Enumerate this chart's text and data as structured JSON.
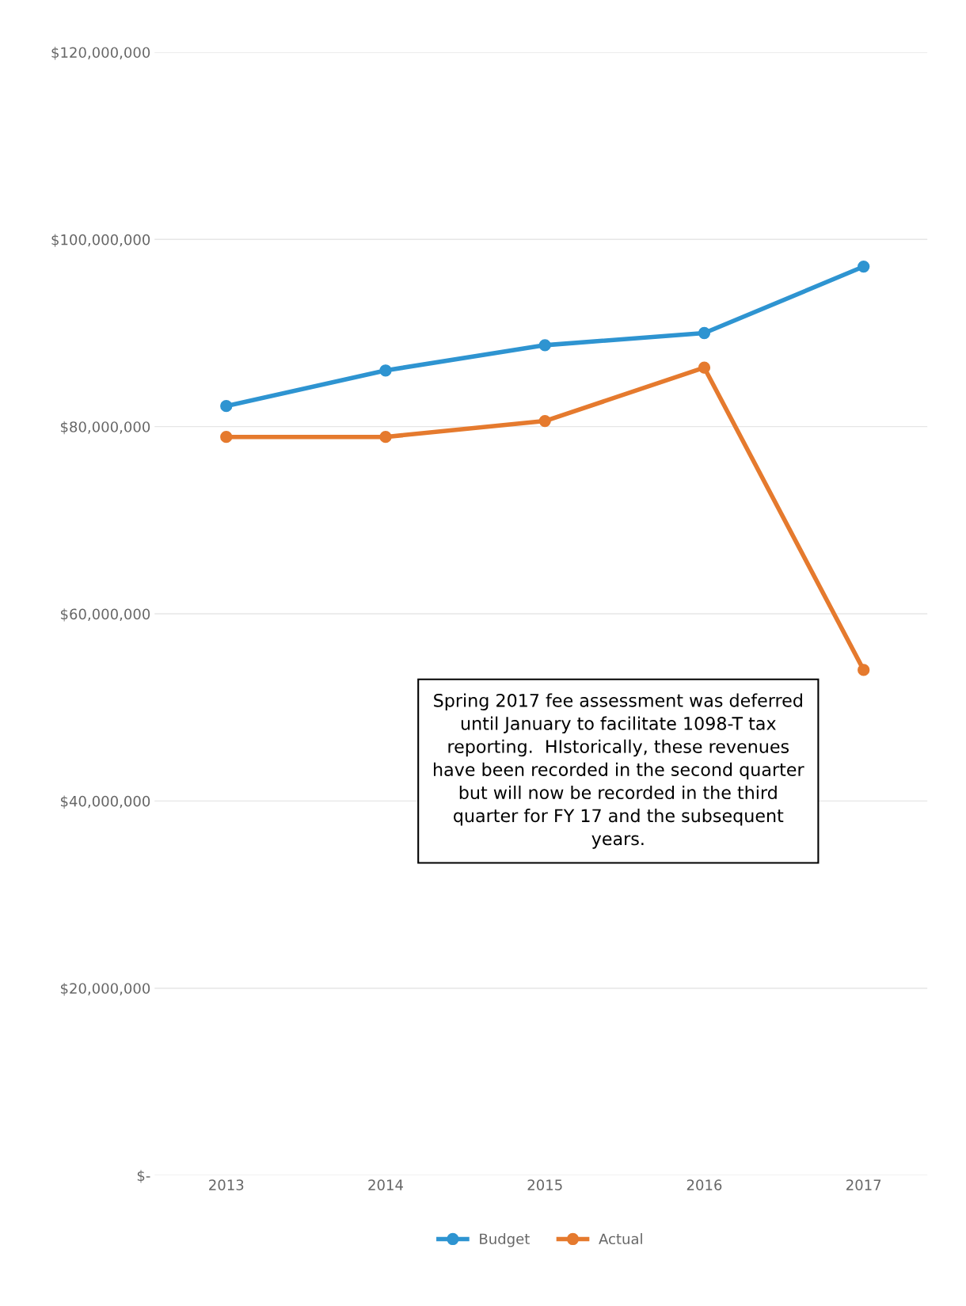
{
  "chart_data": {
    "type": "line",
    "categories": [
      "2013",
      "2014",
      "2015",
      "2016",
      "2017"
    ],
    "series": [
      {
        "name": "Budget",
        "color": "#2e94d1",
        "values": [
          82200000,
          86000000,
          88700000,
          90000000,
          97100000
        ]
      },
      {
        "name": "Actual",
        "color": "#e57a2e",
        "values": [
          78900000,
          78900000,
          80600000,
          86300000,
          54000000
        ]
      }
    ],
    "ylim": [
      0,
      120000000
    ],
    "yticks": [
      {
        "value": 0,
        "label": "$-"
      },
      {
        "value": 20000000,
        "label": "$20,000,000"
      },
      {
        "value": 40000000,
        "label": "$40,000,000"
      },
      {
        "value": 60000000,
        "label": "$60,000,000"
      },
      {
        "value": 80000000,
        "label": "$80,000,000"
      },
      {
        "value": 100000000,
        "label": "$100,000,000"
      },
      {
        "value": 120000000,
        "label": "$120,000,000"
      }
    ],
    "grid": "y",
    "legend": "bottom",
    "marker": "circle",
    "line_style": "solid",
    "annotations": [
      "Spring 2017 fee assessment was deferred until January to facilitate 1098-T tax reporting.  HIstorically, these revenues have been recorded in the second quarter but will now be recorded in the third quarter for FY 17 and the subsequent years."
    ]
  }
}
